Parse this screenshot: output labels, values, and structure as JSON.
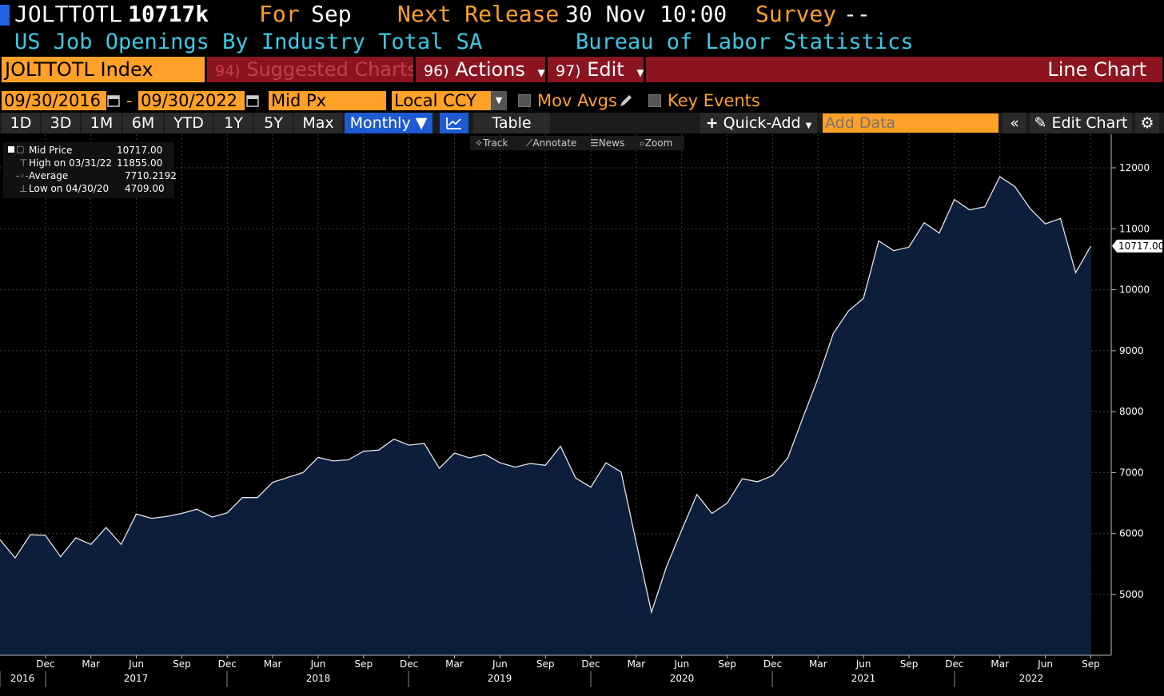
{
  "header": {
    "ticker": "JOLTTOTL",
    "value": "10717k",
    "for_label": "For",
    "for_value": "Sep",
    "next_release_label": "Next Release",
    "next_release_value": "30 Nov 10:00",
    "survey_label": "Survey",
    "survey_value": "--",
    "description": "US Job Openings By Industry Total SA",
    "source": "Bureau of Labor Statistics"
  },
  "toolbar": {
    "security": "JOLTTOTL Index",
    "suggested_num": "94)",
    "suggested_label": "Suggested Charts",
    "actions_num": "96)",
    "actions_label": "Actions",
    "edit_num": "97)",
    "edit_label": "Edit",
    "chart_type": "Line Chart"
  },
  "range": {
    "start_date": "09/30/2016",
    "dash": "-",
    "end_date": "09/30/2022",
    "field": "Mid Px",
    "currency": "Local CCY",
    "mov_avgs": "Mov Avgs",
    "key_events": "Key Events"
  },
  "periods": {
    "items": [
      "1D",
      "3D",
      "1M",
      "6M",
      "YTD",
      "1Y",
      "5Y",
      "Max"
    ],
    "frequency": "Monthly",
    "table": "Table",
    "quick_add": "Quick-Add",
    "add_data_placeholder": "Add Data",
    "edit_chart": "Edit Chart"
  },
  "chart_tools": {
    "track": "Track",
    "annotate": "Annotate",
    "news": "News",
    "zoom": "Zoom"
  },
  "legend": {
    "rows": [
      {
        "label": "Mid Price",
        "value": "10717.00"
      },
      {
        "label": "High on 03/31/22",
        "value": "11855.00"
      },
      {
        "label": "Average",
        "value": "7710.2192"
      },
      {
        "label": "Low on 04/30/20",
        "value": "4709.00"
      }
    ]
  },
  "colors": {
    "orange": "#ffa028",
    "cyan": "#3cc8e6",
    "toolbar_red": "#8c1420",
    "selected_blue": "#1e5ad2",
    "area_fill": "#0c1e3c"
  },
  "chart_data": {
    "type": "area",
    "last_value_label": "10717.00",
    "ylim": [
      4000,
      12500
    ],
    "y_ticks": [
      5000,
      6000,
      7000,
      8000,
      9000,
      10000,
      11000,
      12000
    ],
    "x_month_labels": [
      "Dec",
      "Mar",
      "Jun",
      "Sep",
      "Dec",
      "Mar",
      "Jun",
      "Sep",
      "Dec",
      "Mar",
      "Jun",
      "Sep",
      "Dec",
      "Mar",
      "Jun",
      "Sep",
      "Dec",
      "Mar",
      "Jun",
      "Sep",
      "Dec",
      "Mar",
      "Jun",
      "Sep"
    ],
    "x_year_labels": [
      "2016",
      "2017",
      "2018",
      "2019",
      "2020",
      "2021",
      "2022"
    ],
    "x_start": "2016-09",
    "series": [
      {
        "values": [
          5900,
          5600,
          5980,
          5970,
          5620,
          5930,
          5820,
          6100,
          5820,
          6320,
          6250,
          6280,
          6330,
          6400,
          6270,
          6340,
          6590,
          6590,
          6840,
          6920,
          7000,
          7250,
          7190,
          7210,
          7350,
          7370,
          7550,
          7450,
          7480,
          7070,
          7320,
          7240,
          7300,
          7160,
          7090,
          7150,
          7120,
          7430,
          6910,
          6760,
          7160,
          7010,
          5850,
          4709,
          5460,
          6060,
          6640,
          6330,
          6500,
          6900,
          6850,
          6950,
          7240,
          7900,
          8550,
          9280,
          9650,
          9860,
          10800,
          10640,
          10700,
          11100,
          10930,
          11480,
          11310,
          11360,
          11855,
          11690,
          11330,
          11080,
          11170,
          10280,
          10717
        ]
      }
    ]
  }
}
